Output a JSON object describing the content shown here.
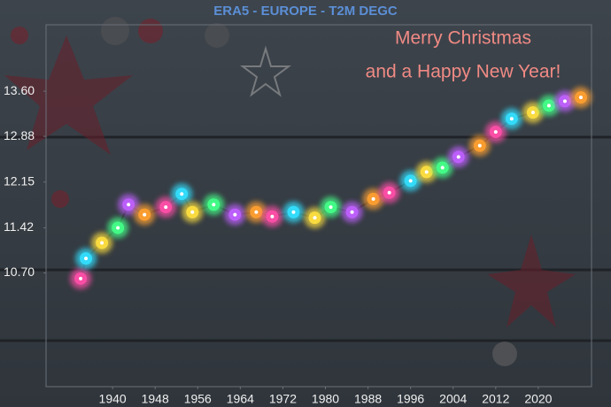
{
  "chart_data": {
    "type": "line",
    "title": "ERA5 - EUROPE - T2M DEGC",
    "annotations": [
      "Merry Christmas",
      "and a Happy New Year!"
    ],
    "x": [
      1934,
      1935,
      1938,
      1941,
      1943,
      1946,
      1950,
      1953,
      1955,
      1959,
      1963,
      1967,
      1970,
      1974,
      1978,
      1981,
      1985,
      1989,
      1992,
      1996,
      1999,
      2002,
      2005,
      2009,
      2012,
      2015,
      2019,
      2022,
      2025,
      2028
    ],
    "series": [
      {
        "name": "T2M",
        "color": "#222222",
        "values": [
          10.61,
          10.93,
          11.18,
          11.42,
          11.79,
          11.63,
          11.75,
          11.96,
          11.67,
          11.79,
          11.63,
          11.67,
          11.6,
          11.67,
          11.58,
          11.75,
          11.67,
          11.88,
          11.98,
          12.17,
          12.31,
          12.38,
          12.55,
          12.73,
          12.95,
          13.16,
          13.26,
          13.37,
          13.44,
          13.5
        ]
      }
    ],
    "bulb_colors": [
      "#ff4fa8",
      "#33e0ff",
      "#ffe040",
      "#44ff88",
      "#c060ff",
      "#ffa030"
    ],
    "xlim": [
      1927.5,
      2030
    ],
    "xticks": [
      1940,
      1948,
      1956,
      1964,
      1972,
      1980,
      1988,
      1996,
      2004,
      2012,
      2020
    ],
    "ylim": [
      8.885,
      14.66
    ],
    "yticks": [
      {
        "value": 10.7,
        "label": "10.70"
      },
      {
        "value": 11.42,
        "label": "11.42"
      },
      {
        "value": 12.15,
        "label": "12.15"
      },
      {
        "value": 12.88,
        "label": "12.88"
      },
      {
        "value": 13.6,
        "label": "13.60"
      }
    ],
    "title_color": "#5b8fd6",
    "annotation_color": "#f08a84"
  }
}
